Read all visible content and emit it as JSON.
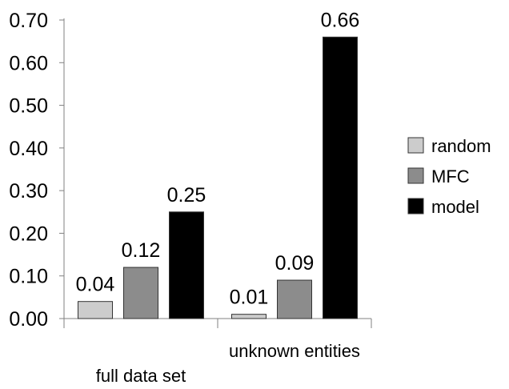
{
  "chart_data": {
    "type": "bar",
    "categories": [
      "full data set",
      "unknown entities"
    ],
    "series": [
      {
        "name": "random",
        "values": [
          0.04,
          0.01
        ],
        "color": "#cccccc"
      },
      {
        "name": "MFC",
        "values": [
          0.12,
          0.09
        ],
        "color": "#8c8c8c"
      },
      {
        "name": "model",
        "values": [
          0.25,
          0.66
        ],
        "color": "#000000"
      }
    ],
    "data_labels": [
      [
        "0.04",
        "0.12",
        "0.25"
      ],
      [
        "0.01",
        "0.09",
        "0.66"
      ]
    ],
    "ylim": [
      0,
      0.7
    ],
    "yticks": [
      0,
      0.1,
      0.2,
      0.3,
      0.4,
      0.5,
      0.6,
      0.7
    ],
    "ytick_labels": [
      "0.00",
      "0.10",
      "0.20",
      "0.30",
      "0.40",
      "0.50",
      "0.60",
      "0.70"
    ],
    "title": "",
    "xlabel": "",
    "ylabel": "",
    "grid": false,
    "legend_position": "right"
  }
}
